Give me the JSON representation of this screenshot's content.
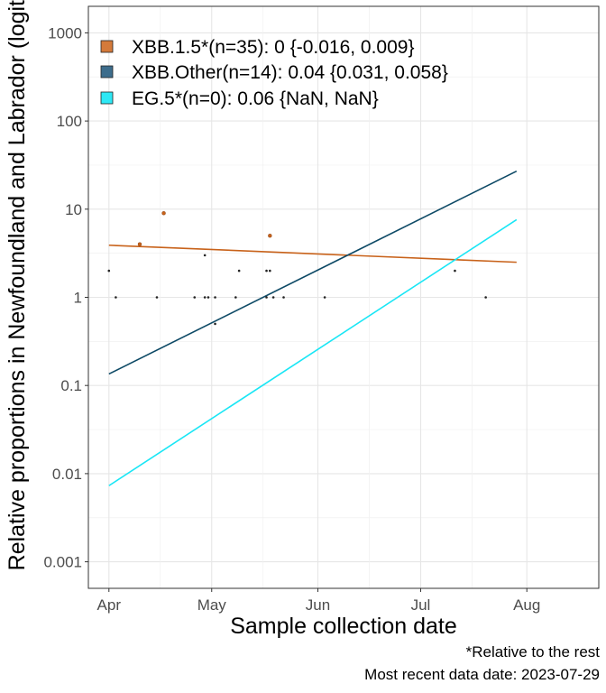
{
  "chart_data": {
    "type": "scatter",
    "title": "",
    "xlabel": "Sample collection date",
    "ylabel": "Relative proportions in Newfoundland and Labrador (logit)",
    "ylim": [
      0.0005,
      2000
    ],
    "xlim": [
      "2023-03-26",
      "2023-08-22"
    ],
    "yscale": "log",
    "grid": true,
    "legend_position": "top-left",
    "y_ticks": [
      {
        "value": 0.001,
        "label": "0.001"
      },
      {
        "value": 0.01,
        "label": "0.01"
      },
      {
        "value": 0.1,
        "label": "0.1"
      },
      {
        "value": 1,
        "label": "1"
      },
      {
        "value": 10,
        "label": "10"
      },
      {
        "value": 100,
        "label": "100"
      },
      {
        "value": 1000,
        "label": "1000"
      }
    ],
    "x_ticks": [
      {
        "value": "2023-04-01",
        "label": "Apr"
      },
      {
        "value": "2023-05-01",
        "label": "May"
      },
      {
        "value": "2023-06-01",
        "label": "Jun"
      },
      {
        "value": "2023-07-01",
        "label": "Jul"
      },
      {
        "value": "2023-08-01",
        "label": "Aug"
      }
    ],
    "series": [
      {
        "name": "XBB.1.5*(n=35): 0 {-0.016, 0.009}",
        "color": "#c8621a",
        "legend_fill": "#d47a3a",
        "fit": {
          "x": [
            "2023-04-01",
            "2023-07-29"
          ],
          "y": [
            3.9,
            2.5
          ]
        },
        "points": [
          {
            "x": "2023-04-10",
            "y": 4
          },
          {
            "x": "2023-04-17",
            "y": 9
          },
          {
            "x": "2023-05-18",
            "y": 5
          }
        ]
      },
      {
        "name": "XBB.Other(n=14): 0.04 {0.031, 0.058}",
        "color": "#0e4a66",
        "legend_fill": "#3d6d8c",
        "fit": {
          "x": [
            "2023-04-01",
            "2023-07-29"
          ],
          "y": [
            0.135,
            27
          ]
        },
        "points": []
      },
      {
        "name": "EG.5*(n=0): 0.06 {NaN, NaN}",
        "color": "#19e6f5",
        "legend_fill": "#2ee8f5",
        "fit": {
          "x": [
            "2023-04-01",
            "2023-07-29"
          ],
          "y": [
            0.0073,
            7.6
          ]
        },
        "points": []
      }
    ],
    "other_points": [
      {
        "x": "2023-04-01",
        "y": 2
      },
      {
        "x": "2023-04-03",
        "y": 1
      },
      {
        "x": "2023-04-15",
        "y": 1
      },
      {
        "x": "2023-04-26",
        "y": 1
      },
      {
        "x": "2023-04-29",
        "y": 3
      },
      {
        "x": "2023-04-29",
        "y": 1
      },
      {
        "x": "2023-04-30",
        "y": 1
      },
      {
        "x": "2023-05-02",
        "y": 1
      },
      {
        "x": "2023-05-02",
        "y": 0.5
      },
      {
        "x": "2023-05-08",
        "y": 1
      },
      {
        "x": "2023-05-09",
        "y": 2
      },
      {
        "x": "2023-05-17",
        "y": 2
      },
      {
        "x": "2023-05-17",
        "y": 1
      },
      {
        "x": "2023-05-18",
        "y": 2
      },
      {
        "x": "2023-05-19",
        "y": 1
      },
      {
        "x": "2023-05-22",
        "y": 1
      },
      {
        "x": "2023-06-03",
        "y": 1
      },
      {
        "x": "2023-07-11",
        "y": 2
      },
      {
        "x": "2023-07-20",
        "y": 1
      }
    ]
  },
  "caption": {
    "line1": "*Relative to the rest",
    "line2": "Most recent data date: 2023-07-29"
  }
}
